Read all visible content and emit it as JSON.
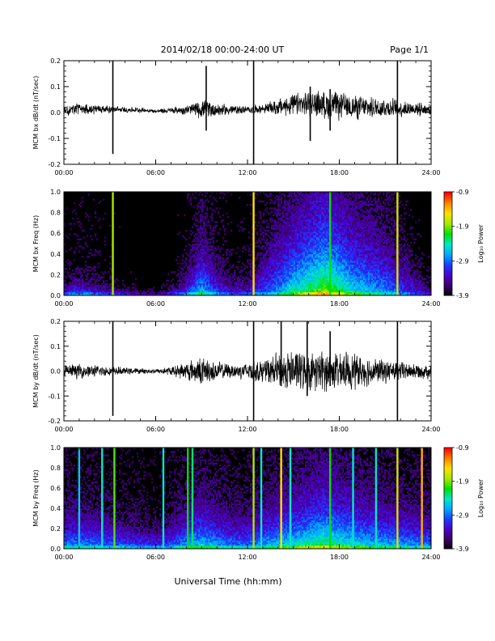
{
  "header": {
    "title": "2014/02/18  00:00-24:00 UT",
    "page": "Page 1/1"
  },
  "xaxis": {
    "label": "Universal Time (hh:mm)",
    "range_hours": [
      0,
      24
    ],
    "ticks": [
      "00:00",
      "06:00",
      "12:00",
      "18:00",
      "24:00"
    ]
  },
  "colorbar": {
    "label": "Log₁₀ Power",
    "range": [
      -3.9,
      -0.9
    ],
    "ticks": [
      "-0.9",
      "-1.9",
      "-2.9",
      "-3.9"
    ],
    "colormap": [
      "#000000",
      "#3a0068",
      "#4b00c8",
      "#1a3cff",
      "#00a8ff",
      "#00e8c8",
      "#00e000",
      "#a8e800",
      "#ffe000",
      "#ff8000",
      "#ff0000"
    ]
  },
  "chart_data": [
    {
      "type": "line",
      "ylabel": "MCM bx dB/dt (nT/sec)",
      "ylim": [
        -0.2,
        0.2
      ],
      "yticks": [
        "0.2",
        "0.1",
        "0.0",
        "-0.1",
        "-0.2"
      ],
      "envelope": {
        "hours": [
          0,
          1,
          2,
          3,
          4,
          5,
          6,
          7,
          8,
          9,
          10,
          11,
          12,
          13,
          14,
          15,
          16,
          17,
          18,
          19,
          20,
          21,
          22,
          23,
          24
        ],
        "amplitude": [
          0.02,
          0.025,
          0.02,
          0.015,
          0.012,
          0.01,
          0.008,
          0.012,
          0.02,
          0.04,
          0.03,
          0.02,
          0.015,
          0.02,
          0.035,
          0.045,
          0.05,
          0.06,
          0.055,
          0.05,
          0.045,
          0.04,
          0.035,
          0.03,
          0.025
        ],
        "baseline": [
          0.01,
          0.012,
          0.015,
          0.012,
          0.01,
          0.01,
          0.005,
          0.008,
          0.01,
          0.015,
          0.01,
          0.01,
          0.01,
          0.015,
          0.02,
          0.03,
          0.035,
          0.03,
          0.025,
          0.02,
          0.02,
          0.02,
          0.015,
          0.015,
          0.01
        ]
      },
      "spikes": [
        {
          "hour": 3.2,
          "min": -0.16,
          "max": 0.2
        },
        {
          "hour": 9.3,
          "min": -0.07,
          "max": 0.18
        },
        {
          "hour": 12.4,
          "min": -0.2,
          "max": 0.2
        },
        {
          "hour": 16.1,
          "min": -0.11,
          "max": 0.1
        },
        {
          "hour": 17.4,
          "min": -0.07,
          "max": 0.09
        },
        {
          "hour": 21.8,
          "min": -0.2,
          "max": 0.2
        }
      ]
    },
    {
      "type": "heatmap",
      "ylabel": "MCM bx Freq (Hz)",
      "ylim": [
        0,
        1.0
      ],
      "yticks": [
        "1.0",
        "0.8",
        "0.6",
        "0.4",
        "0.2",
        "0.0"
      ],
      "activity": {
        "hours": [
          0,
          1,
          2,
          3,
          4,
          5,
          6,
          7,
          8,
          9,
          10,
          11,
          12,
          13,
          14,
          15,
          16,
          17,
          18,
          19,
          20,
          21,
          22,
          23,
          24
        ],
        "level": [
          0.35,
          0.4,
          0.35,
          0.3,
          0.25,
          0.2,
          0.15,
          0.25,
          0.4,
          0.55,
          0.4,
          0.3,
          0.3,
          0.4,
          0.5,
          0.65,
          0.75,
          0.85,
          0.75,
          0.6,
          0.55,
          0.5,
          0.4,
          0.3,
          0.2
        ],
        "reach": [
          0.1,
          0.12,
          0.1,
          0.08,
          0.06,
          0.05,
          0.04,
          0.08,
          0.15,
          0.35,
          0.2,
          0.15,
          0.15,
          0.3,
          0.4,
          0.45,
          0.5,
          0.55,
          0.5,
          0.45,
          0.42,
          0.38,
          0.3,
          0.2,
          0.12
        ]
      },
      "stripes": [
        {
          "hour": 3.2,
          "intensity": 0.7
        },
        {
          "hour": 12.4,
          "intensity": 0.8
        },
        {
          "hour": 17.4,
          "intensity": 0.6
        },
        {
          "hour": 21.8,
          "intensity": 0.75
        }
      ]
    },
    {
      "type": "line",
      "ylabel": "MCM by dB/dt (nT/sec)",
      "ylim": [
        -0.2,
        0.2
      ],
      "yticks": [
        "0.2",
        "0.1",
        "0.0",
        "-0.1",
        "-0.2"
      ],
      "envelope": {
        "hours": [
          0,
          1,
          2,
          3,
          4,
          5,
          6,
          7,
          8,
          9,
          10,
          11,
          12,
          13,
          14,
          15,
          16,
          17,
          18,
          19,
          20,
          21,
          22,
          23,
          24
        ],
        "amplitude": [
          0.03,
          0.03,
          0.025,
          0.02,
          0.015,
          0.012,
          0.01,
          0.02,
          0.04,
          0.06,
          0.04,
          0.03,
          0.04,
          0.05,
          0.08,
          0.09,
          0.08,
          0.085,
          0.08,
          0.075,
          0.06,
          0.05,
          0.04,
          0.035,
          0.03
        ],
        "baseline": [
          0,
          0,
          0,
          0,
          0,
          0,
          0,
          0,
          0,
          0,
          0,
          0,
          0,
          0,
          0,
          0,
          0,
          0,
          0,
          0,
          0,
          0,
          0,
          0,
          0
        ]
      },
      "spikes": [
        {
          "hour": 3.2,
          "min": -0.18,
          "max": 0.2
        },
        {
          "hour": 12.4,
          "min": -0.2,
          "max": 0.2
        },
        {
          "hour": 14.2,
          "min": -0.06,
          "max": 0.2
        },
        {
          "hour": 15.9,
          "min": -0.1,
          "max": 0.2
        },
        {
          "hour": 17.4,
          "min": -0.06,
          "max": 0.16
        },
        {
          "hour": 21.8,
          "min": -0.2,
          "max": 0.2
        }
      ]
    },
    {
      "type": "heatmap",
      "ylabel": "MCM by Freq (Hz)",
      "ylim": [
        0,
        1.0
      ],
      "yticks": [
        "1.0",
        "0.8",
        "0.6",
        "0.4",
        "0.2",
        "0.0"
      ],
      "activity": {
        "hours": [
          0,
          1,
          2,
          3,
          4,
          5,
          6,
          7,
          8,
          9,
          10,
          11,
          12,
          13,
          14,
          15,
          16,
          17,
          18,
          19,
          20,
          21,
          22,
          23,
          24
        ],
        "level": [
          0.5,
          0.5,
          0.5,
          0.48,
          0.45,
          0.42,
          0.4,
          0.45,
          0.55,
          0.6,
          0.55,
          0.5,
          0.5,
          0.55,
          0.6,
          0.65,
          0.7,
          0.75,
          0.7,
          0.65,
          0.6,
          0.58,
          0.55,
          0.52,
          0.5
        ],
        "reach": [
          0.25,
          0.25,
          0.22,
          0.2,
          0.18,
          0.16,
          0.15,
          0.18,
          0.25,
          0.3,
          0.25,
          0.22,
          0.22,
          0.25,
          0.3,
          0.32,
          0.35,
          0.38,
          0.35,
          0.32,
          0.3,
          0.28,
          0.26,
          0.25,
          0.24
        ]
      },
      "stripes": [
        {
          "hour": 1.0,
          "intensity": 0.45
        },
        {
          "hour": 2.5,
          "intensity": 0.5
        },
        {
          "hour": 3.3,
          "intensity": 0.65
        },
        {
          "hour": 6.5,
          "intensity": 0.5
        },
        {
          "hour": 8.1,
          "intensity": 0.6
        },
        {
          "hour": 8.4,
          "intensity": 0.55
        },
        {
          "hour": 12.4,
          "intensity": 0.7
        },
        {
          "hour": 12.9,
          "intensity": 0.5
        },
        {
          "hour": 14.2,
          "intensity": 0.8
        },
        {
          "hour": 14.8,
          "intensity": 0.5
        },
        {
          "hour": 17.4,
          "intensity": 0.6
        },
        {
          "hour": 18.9,
          "intensity": 0.5
        },
        {
          "hour": 20.4,
          "intensity": 0.5
        },
        {
          "hour": 21.8,
          "intensity": 0.75
        },
        {
          "hour": 23.4,
          "intensity": 0.85
        }
      ]
    }
  ]
}
